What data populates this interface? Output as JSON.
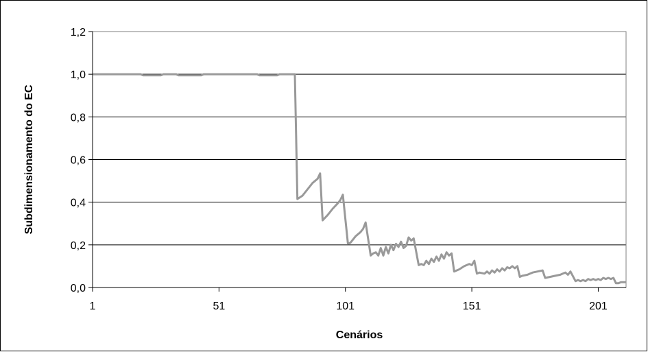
{
  "chart_data": {
    "type": "line",
    "title": "",
    "xlabel": "Cenários",
    "ylabel": "Subdimensionamento do EC",
    "xlim": [
      1,
      212
    ],
    "ylim": [
      0,
      1.2
    ],
    "x_ticks": [
      1,
      51,
      101,
      151,
      201
    ],
    "x_tick_labels": [
      "1",
      "51",
      "101",
      "151",
      "201"
    ],
    "y_ticks": [
      0,
      0.2,
      0.4,
      0.6,
      0.8,
      1.0,
      1.2
    ],
    "y_tick_labels": [
      "0,0",
      "0,2",
      "0,4",
      "0,6",
      "0,8",
      "1,0",
      "1,2"
    ],
    "grid": "horizontal",
    "legend": "none",
    "colors": {
      "series": "#999999",
      "grid": "#000000",
      "plot_border": "#808080"
    },
    "series": [
      {
        "name": "",
        "x": [
          1,
          20,
          21,
          28,
          29,
          34,
          35,
          44,
          45,
          66,
          67,
          74,
          75,
          81,
          82,
          84,
          86,
          88,
          90,
          91,
          92,
          94,
          96,
          98,
          99,
          100,
          102,
          103,
          105,
          107,
          108,
          109,
          111,
          112,
          113,
          114,
          115,
          116,
          117,
          118,
          119,
          120,
          121,
          122,
          123,
          124,
          125,
          126,
          127,
          128,
          130,
          131,
          132,
          133,
          134,
          135,
          136,
          137,
          138,
          139,
          140,
          141,
          142,
          143,
          144,
          145,
          146,
          148,
          150,
          151,
          152,
          153,
          154,
          156,
          157,
          158,
          159,
          160,
          161,
          162,
          163,
          164,
          165,
          166,
          167,
          168,
          169,
          170,
          171,
          173,
          175,
          177,
          179,
          180,
          182,
          184,
          186,
          187,
          188,
          189,
          190,
          192,
          193,
          194,
          195,
          196,
          197,
          198,
          199,
          200,
          201,
          202,
          203,
          204,
          205,
          206,
          207,
          208,
          209,
          210,
          212
        ],
        "values": [
          1.0,
          1.0,
          0.995,
          0.995,
          1.0,
          1.0,
          0.995,
          0.995,
          1.0,
          1.0,
          0.995,
          0.995,
          1.0,
          1.0,
          0.415,
          0.43,
          0.46,
          0.49,
          0.51,
          0.535,
          0.315,
          0.34,
          0.37,
          0.395,
          0.41,
          0.435,
          0.205,
          0.21,
          0.24,
          0.26,
          0.275,
          0.305,
          0.15,
          0.16,
          0.165,
          0.15,
          0.185,
          0.15,
          0.19,
          0.16,
          0.2,
          0.175,
          0.205,
          0.19,
          0.215,
          0.185,
          0.195,
          0.235,
          0.22,
          0.23,
          0.105,
          0.11,
          0.105,
          0.125,
          0.11,
          0.135,
          0.12,
          0.145,
          0.125,
          0.155,
          0.135,
          0.165,
          0.15,
          0.16,
          0.075,
          0.08,
          0.085,
          0.1,
          0.11,
          0.105,
          0.125,
          0.065,
          0.07,
          0.065,
          0.075,
          0.065,
          0.08,
          0.07,
          0.085,
          0.075,
          0.09,
          0.08,
          0.095,
          0.09,
          0.1,
          0.09,
          0.1,
          0.05,
          0.055,
          0.06,
          0.07,
          0.075,
          0.08,
          0.045,
          0.05,
          0.055,
          0.06,
          0.065,
          0.07,
          0.06,
          0.075,
          0.03,
          0.035,
          0.03,
          0.035,
          0.03,
          0.04,
          0.035,
          0.04,
          0.035,
          0.04,
          0.035,
          0.045,
          0.04,
          0.045,
          0.04,
          0.045,
          0.02,
          0.02,
          0.025,
          0.025
        ]
      }
    ]
  }
}
